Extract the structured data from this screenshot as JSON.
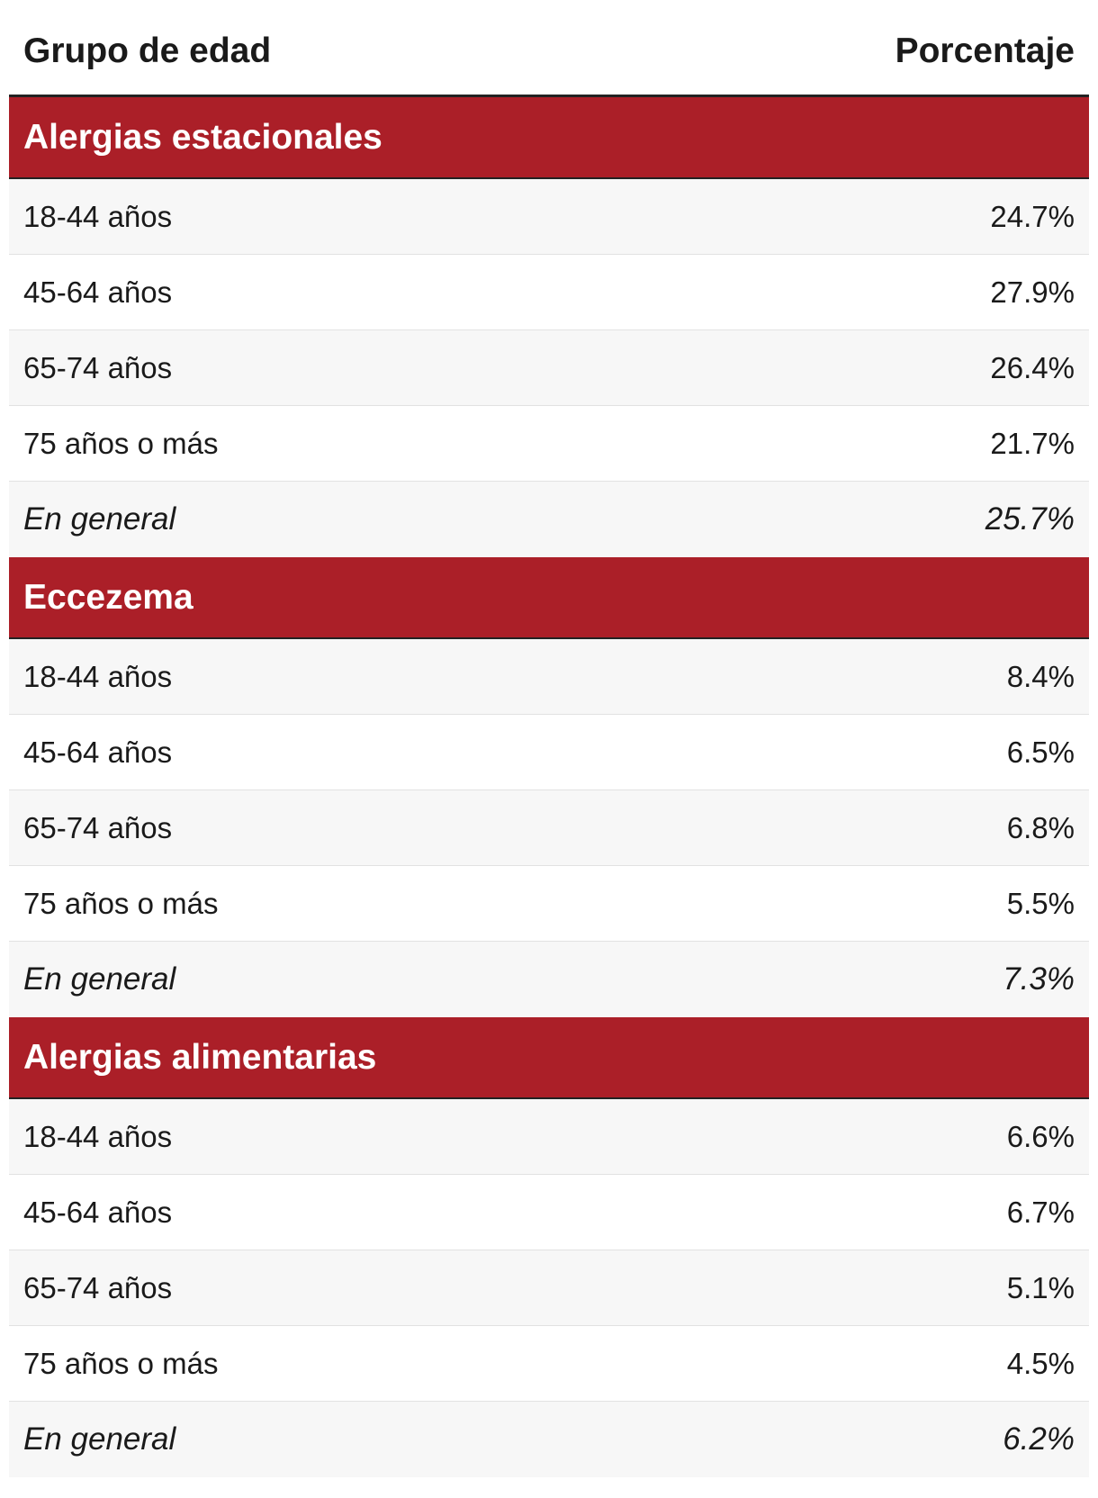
{
  "table": {
    "columns": {
      "group": "Grupo de edad",
      "percent": "Porcentaje"
    },
    "sections": [
      {
        "title": "Alergias estacionales",
        "rows": [
          {
            "group": "18-44 años",
            "percent": "24.7%"
          },
          {
            "group": "45-64 años",
            "percent": "27.9%"
          },
          {
            "group": "65-74 años",
            "percent": "26.4%"
          },
          {
            "group": "75 años o más",
            "percent": "21.7%"
          }
        ],
        "total": {
          "group": "En general",
          "percent": "25.7%"
        }
      },
      {
        "title": "Eccezema",
        "rows": [
          {
            "group": "18-44 años",
            "percent": "8.4%"
          },
          {
            "group": "45-64 años",
            "percent": "6.5%"
          },
          {
            "group": "65-74 años",
            "percent": "6.8%"
          },
          {
            "group": "75 años o más",
            "percent": "5.5%"
          }
        ],
        "total": {
          "group": "En general",
          "percent": "7.3%"
        }
      },
      {
        "title": "Alergias alimentarias",
        "rows": [
          {
            "group": "18-44 años",
            "percent": "6.6%"
          },
          {
            "group": "45-64 años",
            "percent": "6.7%"
          },
          {
            "group": "65-74 años",
            "percent": "5.1%"
          },
          {
            "group": "75 años o más",
            "percent": "4.5%"
          }
        ],
        "total": {
          "group": "En general",
          "percent": "6.2%"
        }
      }
    ]
  },
  "colors": {
    "section_header_bg": "#ab1f28",
    "section_header_text": "#ffffff",
    "row_alt_bg": "#f7f7f7"
  }
}
